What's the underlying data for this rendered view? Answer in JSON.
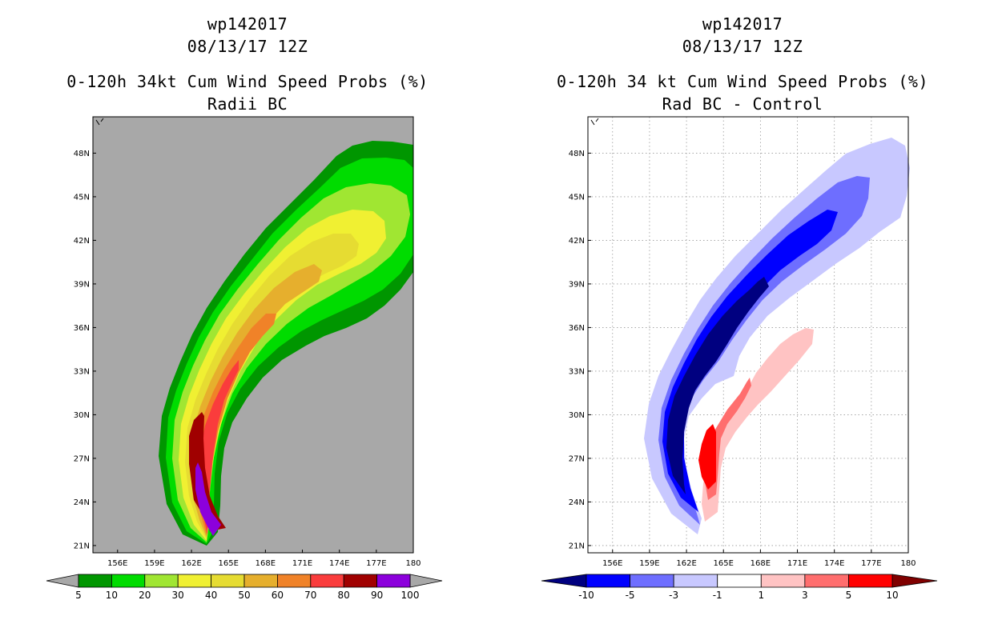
{
  "chart_data": [
    {
      "type": "heatmap",
      "title_lines": [
        "wp142017",
        "08/13/17 12Z",
        "0-120h 34kt Cum Wind Speed Probs (%)",
        "Radii BC"
      ],
      "x_ticks": [
        "156E",
        "159E",
        "162E",
        "165E",
        "168E",
        "171E",
        "174E",
        "177E",
        "180"
      ],
      "y_ticks": [
        "21N",
        "24N",
        "27N",
        "30N",
        "33N",
        "36N",
        "39N",
        "42N",
        "45N",
        "48N"
      ],
      "xlim": [
        154,
        180
      ],
      "ylim": [
        20.5,
        50.5
      ],
      "background_color": "#a8a8a8",
      "grid": false,
      "colorbar_labels": [
        "5",
        "10",
        "20",
        "30",
        "40",
        "50",
        "60",
        "70",
        "80",
        "90",
        "100"
      ],
      "colorbar_colors": [
        "#009600",
        "#00dc00",
        "#a0e632",
        "#f0f032",
        "#e6dc32",
        "#e6af2d",
        "#f08228",
        "#fa3c3c",
        "#a00000",
        "#8c00dc"
      ],
      "colorbar_end_color": "#a8a8a8",
      "levels": [
        5,
        10,
        20,
        30,
        40,
        50,
        60,
        70,
        80,
        90,
        100
      ]
    },
    {
      "type": "heatmap",
      "title_lines": [
        "wp142017",
        "08/13/17 12Z",
        "0-120h 34 kt Cum Wind Speed Probs (%)",
        "Rad BC - Control"
      ],
      "x_ticks": [
        "156E",
        "159E",
        "162E",
        "165E",
        "168E",
        "171E",
        "174E",
        "177E",
        "180"
      ],
      "y_ticks": [
        "21N",
        "24N",
        "27N",
        "30N",
        "33N",
        "36N",
        "39N",
        "42N",
        "45N",
        "48N"
      ],
      "xlim": [
        154,
        180
      ],
      "ylim": [
        20.5,
        50.5
      ],
      "background_color": "#ffffff",
      "grid": true,
      "colorbar_labels": [
        "-10",
        "-5",
        "-3",
        "-1",
        "1",
        "3",
        "5",
        "10"
      ],
      "colorbar_colors": [
        "#0000ff",
        "#6e6eff",
        "#c8c8ff",
        "#ffffff",
        "#ffc3c3",
        "#ff6e6e",
        "#ff0000"
      ],
      "colorbar_low_color": "#000080",
      "colorbar_high_color": "#800000",
      "levels": [
        -10,
        -5,
        -3,
        -1,
        1,
        3,
        5,
        10
      ]
    }
  ]
}
